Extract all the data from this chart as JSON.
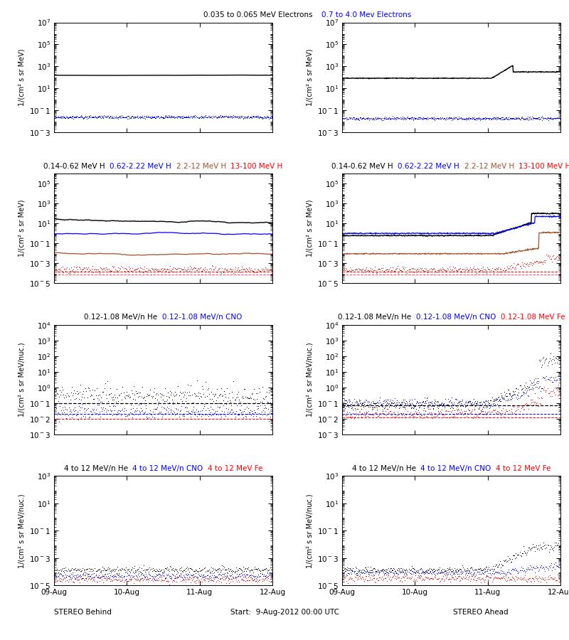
{
  "title_top_left_black": "0.035 to 0.065 MeV Electrons",
  "title_top_left_blue": "0.7 to 4.0 Mev Electrons",
  "title_row2_left": [
    "0.14-0.62 MeV H",
    "0.62-2.22 MeV H",
    "2.2-12 MeV H",
    "13-100 MeV H"
  ],
  "title_row2_right": [
    "0.14-0.62 MeV H",
    "0.62-2.22 MeV H",
    "2.2-12 MeV H",
    "13-100 MeV H"
  ],
  "title_row2_colors": [
    "#000000",
    "#0000FF",
    "#A0522D",
    "#FF0000"
  ],
  "title_row3_left": [
    "0.12-1.08 MeV/n He",
    "0.12-1.08 MeV/n CNO"
  ],
  "title_row3_right": [
    "0.12-1.08 MeV/n He",
    "0.12-1.08 MeV/n CNO",
    "0.12-1.08 MeV Fe"
  ],
  "title_row3_colors_left": [
    "#000000",
    "#0000FF"
  ],
  "title_row3_colors_right": [
    "#000000",
    "#0000FF",
    "#FF0000"
  ],
  "title_row4_left": [
    "4 to 12 MeV/n He",
    "4 to 12 MeV/n CNO",
    "4 to 12 MeV Fe"
  ],
  "title_row4_right": [
    "4 to 12 MeV/n He",
    "4 to 12 MeV/n CNO",
    "4 to 12 MeV Fe"
  ],
  "title_row4_colors": [
    "#000000",
    "#0000FF",
    "#FF0000"
  ],
  "xlabel_dates": [
    "09-Aug",
    "10-Aug",
    "11-Aug",
    "12-Aug"
  ],
  "xlabel_stereo_behind": "STEREO Behind",
  "xlabel_start": "Start:  9-Aug-2012 00:00 UTC",
  "xlabel_stereo_ahead": "STEREO Ahead",
  "ylabel_electrons": "1/(cm² s sr MeV)",
  "ylabel_H": "1/(cm² s sr MeV)",
  "ylabel_heavy": "1/(cm² s sr MeV/nuc.)",
  "row1_ylim": [
    0.001,
    10000000.0
  ],
  "row2_ylim": [
    1e-05,
    1000000.0
  ],
  "row3_ylim": [
    0.001,
    10000.0
  ],
  "row4_ylim": [
    1e-05,
    1000.0
  ],
  "time_days": 3.0,
  "seed": 42
}
